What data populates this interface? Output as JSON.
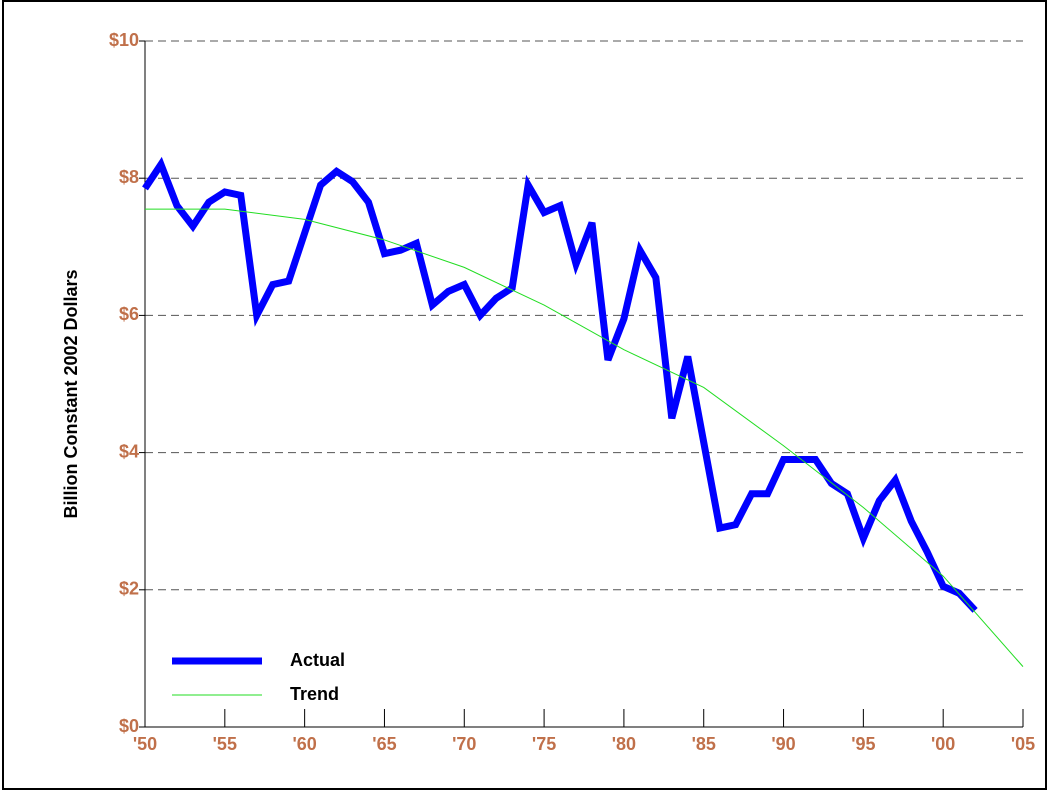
{
  "chart_data": {
    "type": "line",
    "y_label": "Billion Constant 2002 Dollars",
    "xlim": [
      1950,
      2005
    ],
    "ylim": [
      0,
      10
    ],
    "xticks": [
      {
        "value": 1950,
        "label": "'50"
      },
      {
        "value": 1955,
        "label": "'55"
      },
      {
        "value": 1960,
        "label": "'60"
      },
      {
        "value": 1965,
        "label": "'65"
      },
      {
        "value": 1970,
        "label": "'70"
      },
      {
        "value": 1975,
        "label": "'75"
      },
      {
        "value": 1980,
        "label": "'80"
      },
      {
        "value": 1985,
        "label": "'85"
      },
      {
        "value": 1990,
        "label": "'90"
      },
      {
        "value": 1995,
        "label": "'95"
      },
      {
        "value": 2000,
        "label": "'00"
      },
      {
        "value": 2005,
        "label": "'05"
      }
    ],
    "yticks": [
      {
        "value": 0,
        "label": "$0"
      },
      {
        "value": 2,
        "label": "$2"
      },
      {
        "value": 4,
        "label": "$4"
      },
      {
        "value": 6,
        "label": "$6"
      },
      {
        "value": 8,
        "label": "$8"
      },
      {
        "value": 10,
        "label": "$10"
      }
    ],
    "grid": true,
    "legend": "bottom-left",
    "series": [
      {
        "name": "Actual",
        "color": "#0000ff",
        "width": 7,
        "x": [
          1950,
          1951,
          1952,
          1953,
          1954,
          1955,
          1956,
          1957,
          1958,
          1959,
          1960,
          1961,
          1962,
          1963,
          1964,
          1965,
          1966,
          1967,
          1968,
          1969,
          1970,
          1971,
          1972,
          1973,
          1974,
          1975,
          1976,
          1977,
          1978,
          1979,
          1980,
          1981,
          1982,
          1983,
          1984,
          1985,
          1986,
          1987,
          1988,
          1989,
          1990,
          1991,
          1992,
          1993,
          1994,
          1995,
          1996,
          1997,
          1998,
          1999,
          2000,
          2001,
          2002
        ],
        "values": [
          7.85,
          8.2,
          7.6,
          7.3,
          7.65,
          7.8,
          7.75,
          6.0,
          6.45,
          6.5,
          7.2,
          7.9,
          8.1,
          7.95,
          7.65,
          6.9,
          6.95,
          7.05,
          6.15,
          6.35,
          6.45,
          6.0,
          6.25,
          6.4,
          7.9,
          7.5,
          7.6,
          6.75,
          7.35,
          5.35,
          5.95,
          6.95,
          6.55,
          4.5,
          5.4,
          4.15,
          2.9,
          2.95,
          3.4,
          3.4,
          3.9,
          3.9,
          3.9,
          3.55,
          3.4,
          2.75,
          3.3,
          3.6,
          3.0,
          2.55,
          2.05,
          1.95,
          1.7
        ]
      },
      {
        "name": "Trend",
        "color": "#22dd22",
        "width": 1,
        "x": [
          1950,
          1955,
          1960,
          1965,
          1970,
          1975,
          1980,
          1985,
          1990,
          1995,
          2000,
          2005
        ],
        "values": [
          7.55,
          7.55,
          7.4,
          7.1,
          6.7,
          6.15,
          5.5,
          4.95,
          4.1,
          3.2,
          2.2,
          0.88
        ]
      }
    ]
  }
}
